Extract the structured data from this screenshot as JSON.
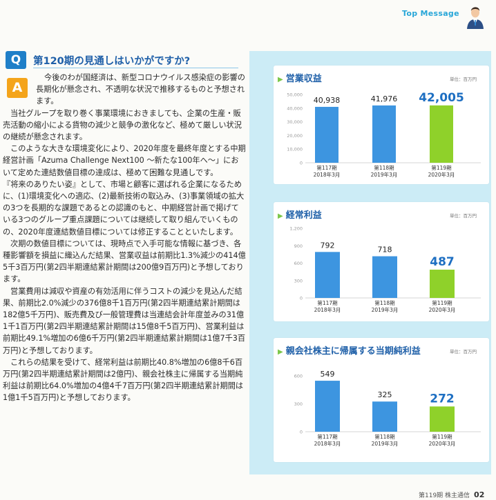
{
  "header": {
    "section": "Top Message"
  },
  "question": {
    "badge": "Q",
    "text": "第120期の見通しはいかがですか?"
  },
  "answer": {
    "badge": "A",
    "paragraphs": [
      "今後のわが国経済は、新型コロナウイルス感染症の影響の長期化が懸念され、不透明な状況で推移するものと予想されます。",
      "当社グループを取り巻く事業環境におきましても、企業の生産・販売活動の縮小による貨物の減少と競争の激化など、極めて厳しい状況の継続が懸念されます。",
      "このような大きな環境変化により、2020年度を最終年度とする中期経営計画「Azuma Challenge Next100 ～新たな100年へ～」において定めた連結数値目標の達成は、極めて困難な見通しです。",
      "『将来のありたい姿』として、市場と顧客に選ばれる企業になるために、(1)環境変化への適応、(2)最新技術の取込み、(3)事業領域の拡大の3つを長期的な課題であるとの認識のもと、中期経営計画で掲げている3つのグループ重点課題については継続して取り組んでいくものの、2020年度連結数値目標については修正することといたします。",
      "次期の数値目標については、現時点で入手可能な情報に基づき、各種影響額を損益に織込んだ結果、営業収益は前期比1.3%減少の414億5千3百万円(第2四半期連結累計期間は200億9百万円)と予想しております。",
      "営業費用は減収や資産の有効活用に伴うコストの減少を見込んだ結果、前期比2.0%減少の376億8千1百万円(第2四半期連結累計期間は182億5千万円)、販売費及び一般管理費は当連結会計年度並みの31億1千1百万円(第2四半期連結累計期間は15億8千5百万円)、営業利益は前期比49.1%増加の6億6千万円(第2四半期連結累計期間は1億7千3百万円)と予想しております。",
      "これらの結果を受けて、経常利益は前期比40.8%増加の6億8千6百万円(第2四半期連結累計期間は2億円)、親会社株主に帰属する当期純利益は前期比64.0%増加の4億4千7百万円(第2四半期連結累計期間は1億1千5百万円)と予想しております。"
    ]
  },
  "chart_data": [
    {
      "type": "bar",
      "title": "営業収益",
      "unit": "単位：百万円",
      "categories": [
        [
          "第117期",
          "2018年3月"
        ],
        [
          "第118期",
          "2019年3月"
        ],
        [
          "第119期",
          "2020年3月"
        ]
      ],
      "values": [
        40938,
        41976,
        42005
      ],
      "value_labels": [
        "40,938",
        "41,976",
        "42,005"
      ],
      "yticks": [
        "0",
        "10,000",
        "20,000",
        "30,000",
        "40,000",
        "50,000"
      ],
      "ylim": [
        0,
        50000
      ],
      "colors": [
        "#3d95e0",
        "#3d95e0",
        "#8fd12a"
      ],
      "highlight_color": "#1e6fc2"
    },
    {
      "type": "bar",
      "title": "経常利益",
      "unit": "単位：百万円",
      "categories": [
        [
          "第117期",
          "2018年3月"
        ],
        [
          "第118期",
          "2019年3月"
        ],
        [
          "第119期",
          "2020年3月"
        ]
      ],
      "values": [
        792,
        718,
        487
      ],
      "value_labels": [
        "792",
        "718",
        "487"
      ],
      "yticks": [
        "0",
        "300",
        "600",
        "900",
        "1,200"
      ],
      "ylim": [
        0,
        1200
      ],
      "colors": [
        "#3d95e0",
        "#3d95e0",
        "#8fd12a"
      ],
      "highlight_color": "#1e6fc2"
    },
    {
      "type": "bar",
      "title": "親会社株主に帰属する当期純利益",
      "unit": "単位：百万円",
      "categories": [
        [
          "第117期",
          "2018年3月"
        ],
        [
          "第118期",
          "2019年3月"
        ],
        [
          "第119期",
          "2020年3月"
        ]
      ],
      "values": [
        549,
        325,
        272
      ],
      "value_labels": [
        "549",
        "325",
        "272"
      ],
      "yticks": [
        "0",
        "300",
        "600"
      ],
      "ylim": [
        0,
        750
      ],
      "colors": [
        "#3d95e0",
        "#3d95e0",
        "#8fd12a"
      ],
      "highlight_color": "#1e6fc2"
    }
  ],
  "footer": {
    "issue": "第119期 株主通信",
    "page": "02"
  }
}
